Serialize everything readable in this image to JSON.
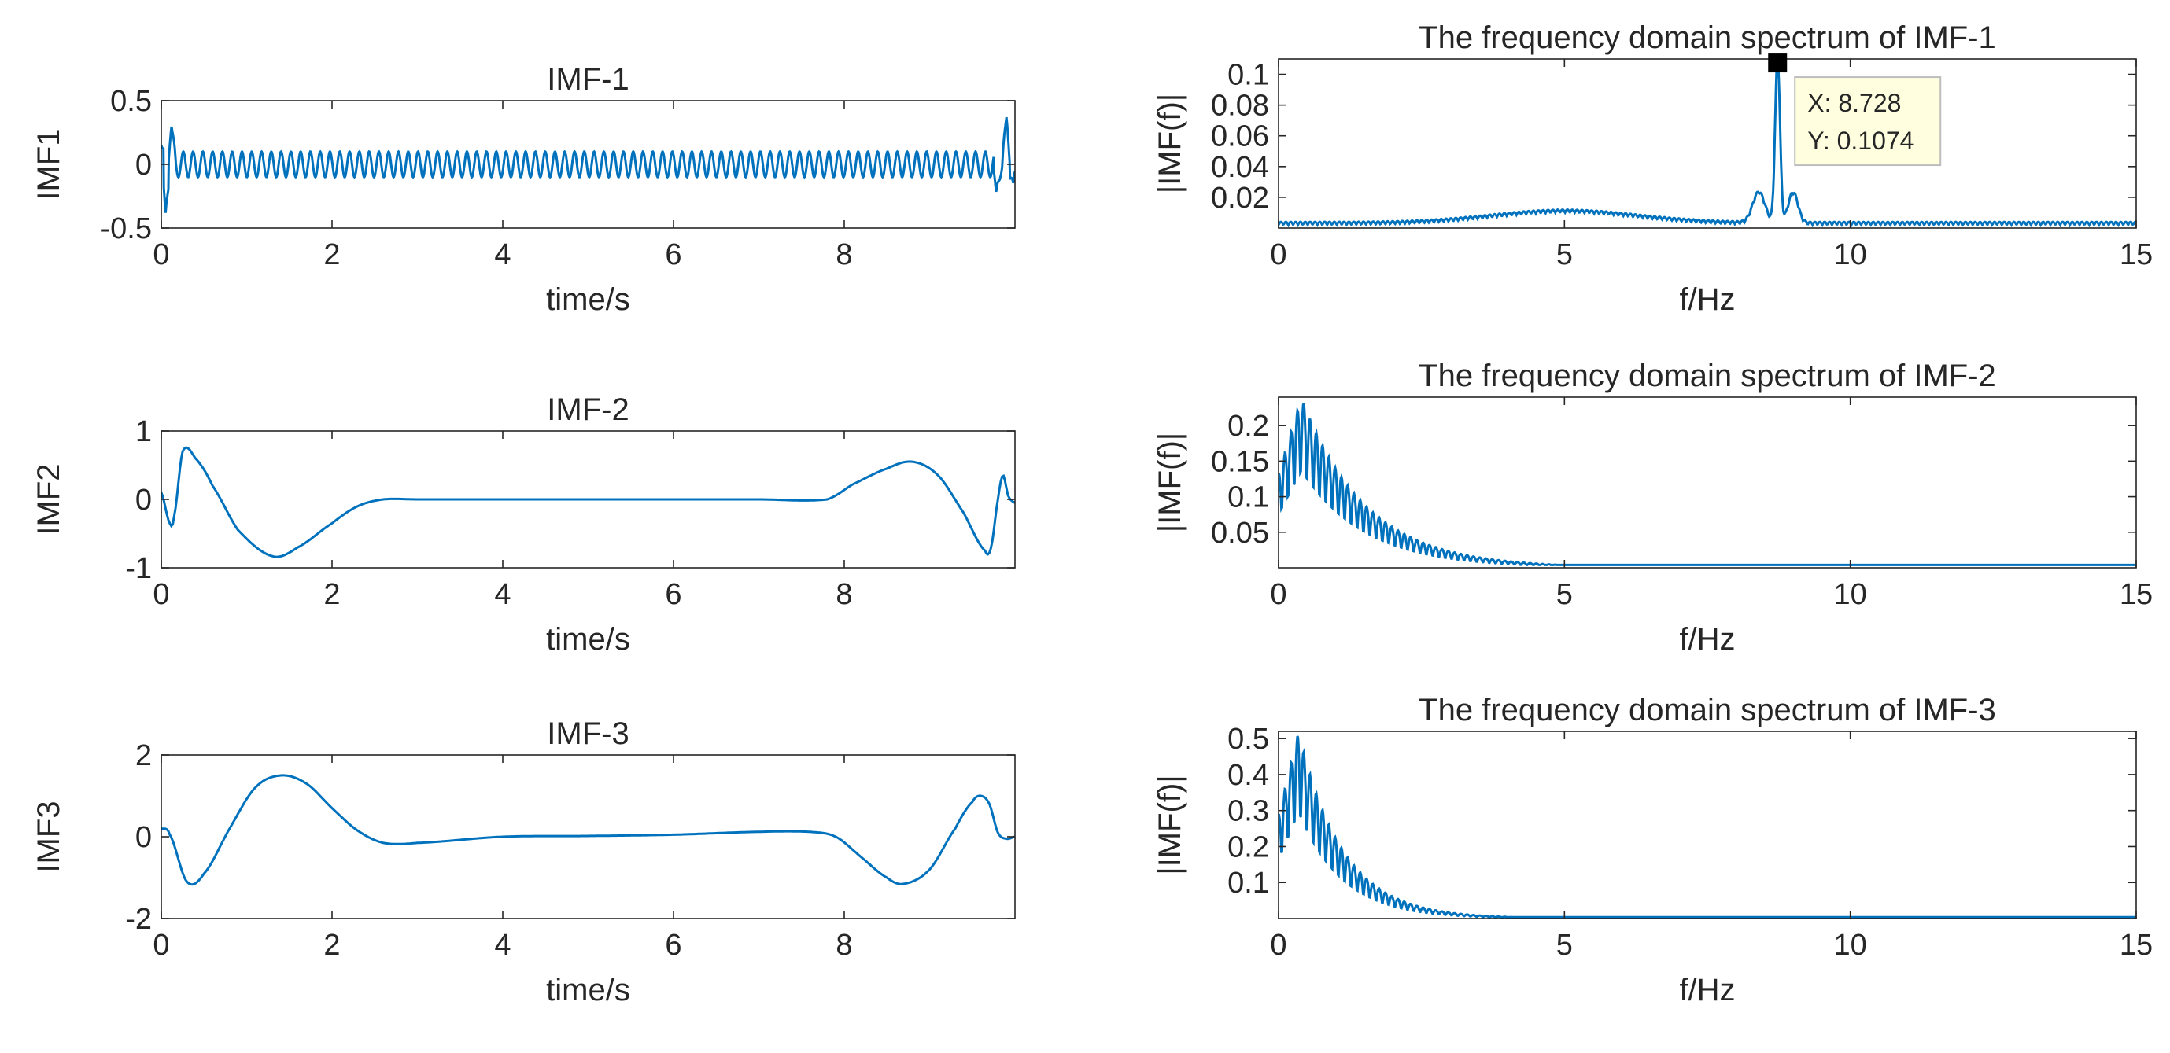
{
  "figure": {
    "line_color": "#0072BD",
    "axis_color": "#262626",
    "text_color": "#262626"
  },
  "chart_data": [
    {
      "id": "imf1-time",
      "type": "line",
      "title": "IMF-1",
      "xlabel": "time/s",
      "ylabel": "IMF1",
      "xlim": [
        0,
        10
      ],
      "ylim": [
        -0.5,
        0.5
      ],
      "xticks": [
        0,
        2,
        4,
        6,
        8
      ],
      "xtick_labels": [
        "0",
        "2",
        "4",
        "6",
        "8"
      ],
      "yticks": [
        -0.5,
        0,
        0.5
      ],
      "ytick_labels": [
        "-0.5",
        "0",
        "0.5"
      ],
      "signal": {
        "kind": "oscillation",
        "frequency_hz": 8.728,
        "amplitude": 0.1,
        "edge_effects": [
          {
            "t": 0.0,
            "y": 0.15
          },
          {
            "t": 0.05,
            "y": -0.38
          },
          {
            "t": 0.12,
            "y": 0.3
          },
          {
            "t": 9.78,
            "y": -0.22
          },
          {
            "t": 9.9,
            "y": 0.37
          },
          {
            "t": 9.98,
            "y": -0.15
          }
        ]
      }
    },
    {
      "id": "imf2-time",
      "type": "line",
      "title": "IMF-2",
      "xlabel": "time/s",
      "ylabel": "IMF2",
      "xlim": [
        0,
        10
      ],
      "ylim": [
        -1,
        1
      ],
      "xticks": [
        0,
        2,
        4,
        6,
        8
      ],
      "xtick_labels": [
        "0",
        "2",
        "4",
        "6",
        "8"
      ],
      "yticks": [
        -1,
        0,
        1
      ],
      "ytick_labels": [
        "-1",
        "0",
        "1"
      ],
      "x": [
        0,
        0.1,
        0.15,
        0.25,
        0.4,
        0.6,
        0.9,
        1.3,
        1.6,
        2.0,
        2.3,
        2.6,
        3.0,
        4.0,
        5.0,
        6.0,
        7.0,
        7.8,
        8.1,
        8.5,
        8.8,
        9.1,
        9.4,
        9.65,
        9.72,
        9.8,
        9.86,
        9.92,
        10.0
      ],
      "y": [
        0.1,
        -0.35,
        -0.25,
        0.7,
        0.6,
        0.2,
        -0.45,
        -0.83,
        -0.7,
        -0.35,
        -0.1,
        0.0,
        0.0,
        0.0,
        0.0,
        0.0,
        0.0,
        0.0,
        0.22,
        0.45,
        0.55,
        0.35,
        -0.2,
        -0.75,
        -0.7,
        0.0,
        0.35,
        0.05,
        -0.05
      ]
    },
    {
      "id": "imf3-time",
      "type": "line",
      "title": "IMF-3",
      "xlabel": "time/s",
      "ylabel": "IMF3",
      "xlim": [
        0,
        10
      ],
      "ylim": [
        -2,
        2
      ],
      "xticks": [
        0,
        2,
        4,
        6,
        8
      ],
      "xtick_labels": [
        "0",
        "2",
        "4",
        "6",
        "8"
      ],
      "yticks": [
        -2,
        0,
        2
      ],
      "ytick_labels": [
        "-2",
        "0",
        "2"
      ],
      "x": [
        0,
        0.1,
        0.3,
        0.5,
        0.8,
        1.1,
        1.4,
        1.7,
        2.0,
        2.3,
        2.6,
        3.0,
        4.0,
        5.0,
        6.0,
        7.0,
        7.6,
        7.9,
        8.2,
        8.5,
        8.7,
        9.0,
        9.3,
        9.5,
        9.6,
        9.7,
        9.8,
        9.9,
        10.0
      ],
      "y": [
        0.2,
        0.05,
        -1.1,
        -0.9,
        0.2,
        1.2,
        1.5,
        1.3,
        0.7,
        0.15,
        -0.15,
        -0.15,
        0.0,
        0.02,
        0.05,
        0.12,
        0.12,
        0.0,
        -0.5,
        -1.0,
        -1.15,
        -0.8,
        0.2,
        0.85,
        1.0,
        0.8,
        0.1,
        -0.05,
        0.0
      ]
    },
    {
      "id": "imf1-spectrum",
      "type": "line",
      "title": "The frequency domain spectrum of IMF-1",
      "xlabel": "f/Hz",
      "ylabel": "|IMF(f)|",
      "xlim": [
        0,
        15
      ],
      "ylim": [
        0,
        0.11
      ],
      "xticks": [
        0,
        5,
        10,
        15
      ],
      "xtick_labels": [
        "0",
        "5",
        "10",
        "15"
      ],
      "yticks": [
        0.02,
        0.04,
        0.06,
        0.08,
        0.1
      ],
      "ytick_labels": [
        "0.02",
        "0.04",
        "0.06",
        "0.08",
        "0.1"
      ],
      "spectrum": {
        "baseline": 0.002,
        "bumps": [
          {
            "center": 5.0,
            "height": 0.008,
            "width": 1.8
          },
          {
            "center": 8.4,
            "height": 0.02,
            "width": 0.15
          },
          {
            "center": 9.0,
            "height": 0.02,
            "width": 0.12
          }
        ],
        "peak": {
          "f": 8.728,
          "value": 0.1074,
          "width": 0.06
        },
        "ripple": 0.002
      },
      "datatip": {
        "x_label": "X: 8.728",
        "y_label": "Y: 0.1074",
        "x": 8.728,
        "y": 0.1074
      }
    },
    {
      "id": "imf2-spectrum",
      "type": "line",
      "title": "The frequency domain spectrum of IMF-2",
      "xlabel": "f/Hz",
      "ylabel": "|IMF(f)|",
      "xlim": [
        0,
        15
      ],
      "ylim": [
        0,
        0.24
      ],
      "xticks": [
        0,
        5,
        10,
        15
      ],
      "xtick_labels": [
        "0",
        "5",
        "10",
        "15"
      ],
      "yticks": [
        0.05,
        0.1,
        0.15,
        0.2
      ],
      "ytick_labels": [
        "0.05",
        "0.1",
        "0.15",
        "0.2"
      ],
      "spectrum": {
        "kind": "decay",
        "peak_value": 0.24,
        "peak_f": 0.4,
        "decay": 0.9,
        "floor": 0.004,
        "oscillation_period": 0.11
      }
    },
    {
      "id": "imf3-spectrum",
      "type": "line",
      "title": "The frequency domain spectrum of IMF-3",
      "xlabel": "f/Hz",
      "ylabel": "|IMF(f)|",
      "xlim": [
        0,
        15
      ],
      "ylim": [
        0,
        0.52
      ],
      "xticks": [
        0,
        5,
        10,
        15
      ],
      "xtick_labels": [
        "0",
        "5",
        "10",
        "15"
      ],
      "yticks": [
        0.1,
        0.2,
        0.3,
        0.4,
        0.5
      ],
      "ytick_labels": [
        "0.1",
        "0.2",
        "0.3",
        "0.4",
        "0.5"
      ],
      "spectrum": {
        "kind": "decay",
        "peak_value": 0.52,
        "peak_f": 0.35,
        "decay": 1.3,
        "floor": 0.004,
        "oscillation_period": 0.11
      }
    }
  ]
}
